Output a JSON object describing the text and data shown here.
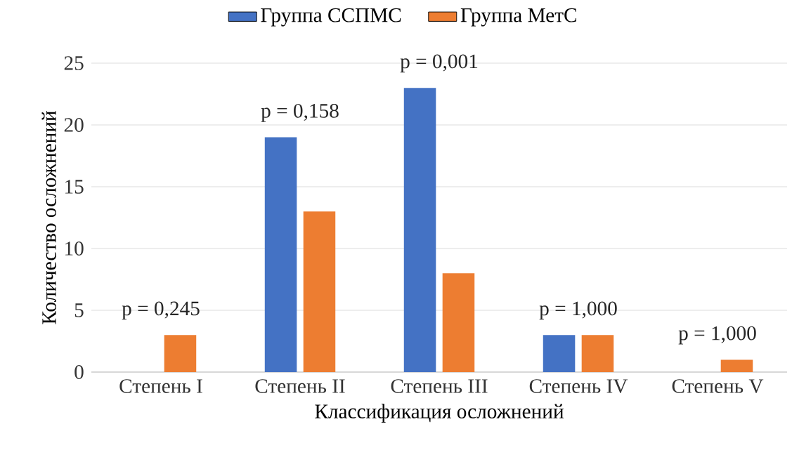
{
  "chart_data": {
    "type": "bar",
    "categories": [
      "Степень I",
      "Степень II",
      "Степень III",
      "Степень IV",
      "Степень V"
    ],
    "series": [
      {
        "name": "Группа ССПМС",
        "color": "#4472c4",
        "values": [
          0,
          19,
          23,
          3,
          0
        ]
      },
      {
        "name": "Группа МетС",
        "color": "#ed7d31",
        "values": [
          3,
          13,
          8,
          3,
          1
        ]
      }
    ],
    "xlabel": "Классификация осложнений",
    "ylabel": "Количество осложнений",
    "ylim": [
      0,
      25
    ],
    "yticks": [
      0,
      5,
      10,
      15,
      20,
      25
    ],
    "grid": "y",
    "legend": "top",
    "annotations": [
      {
        "text": "p = 0,245",
        "x": "Степень I",
        "y": 3
      },
      {
        "text": "p = 0,158",
        "x": "Степень II",
        "y": 19
      },
      {
        "text": "p = 0,001",
        "x": "Степень III",
        "y": 23
      },
      {
        "text": "p = 1,000",
        "x": "Степень IV",
        "y": 3
      },
      {
        "text": "p = 1,000",
        "x": "Степень V",
        "y": 1
      }
    ]
  }
}
